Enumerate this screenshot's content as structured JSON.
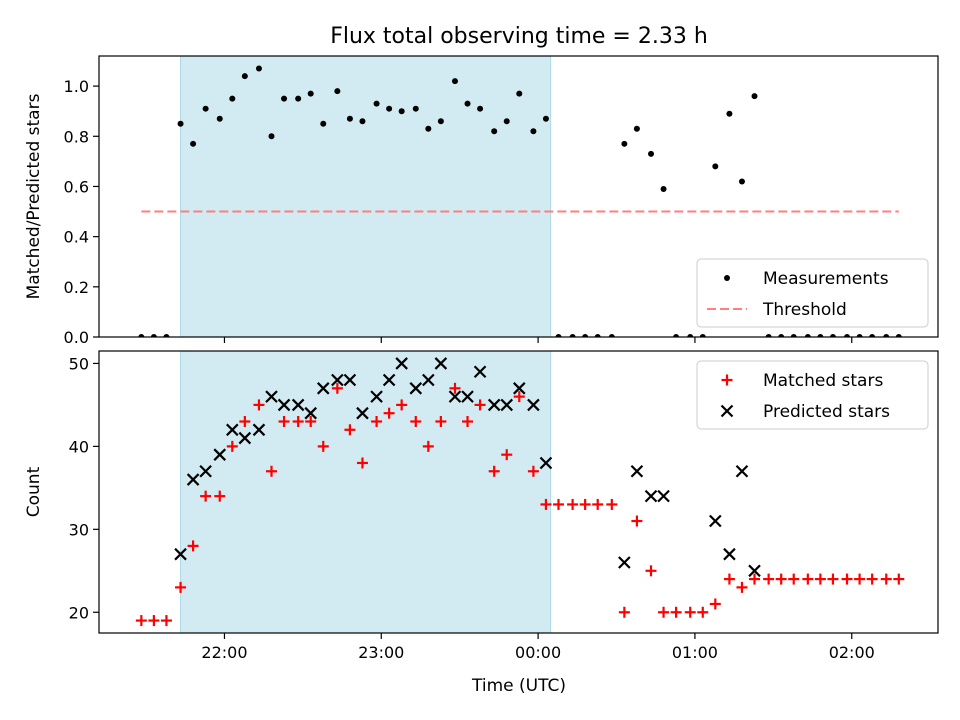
{
  "chart_data": {
    "title": "Flux total observing time = 2.33 h",
    "xlabel": "Time (UTC)",
    "x_unit": "hours UTC on a continuous clock (24.0 = 00:00 next day)",
    "xlim": [
      21.2,
      26.55
    ],
    "x_ticks": [
      {
        "value": 22.0,
        "label": "22:00"
      },
      {
        "value": 23.0,
        "label": "23:00"
      },
      {
        "value": 24.0,
        "label": "00:00"
      },
      {
        "value": 25.0,
        "label": "01:00"
      },
      {
        "value": 26.0,
        "label": "02:00"
      }
    ],
    "shaded_region": {
      "x_start": 21.72,
      "x_end": 24.08,
      "color": "#add8e6"
    },
    "panels": [
      {
        "type": "scatter",
        "ylabel": "Matched/Predicted stars",
        "ylim": [
          0.0,
          1.12
        ],
        "y_ticks": [
          {
            "value": 0.0,
            "label": "0.0"
          },
          {
            "value": 0.2,
            "label": "0.2"
          },
          {
            "value": 0.4,
            "label": "0.4"
          },
          {
            "value": 0.6,
            "label": "0.6"
          },
          {
            "value": 0.8,
            "label": "0.8"
          },
          {
            "value": 1.0,
            "label": "1.0"
          }
        ],
        "legend": {
          "position": "lower-right"
        },
        "series": [
          {
            "name": "Measurements",
            "kind": "dot",
            "color": "#000000",
            "x": [
              21.47,
              21.55,
              21.63,
              21.72,
              21.8,
              21.88,
              21.97,
              22.05,
              22.13,
              22.22,
              22.3,
              22.38,
              22.47,
              22.55,
              22.63,
              22.72,
              22.8,
              22.88,
              22.97,
              23.05,
              23.13,
              23.22,
              23.3,
              23.38,
              23.47,
              23.55,
              23.63,
              23.72,
              23.8,
              23.88,
              23.97,
              24.05,
              24.13,
              24.22,
              24.3,
              24.38,
              24.47,
              24.55,
              24.63,
              24.72,
              24.8,
              24.88,
              24.97,
              25.05,
              25.13,
              25.22,
              25.3,
              25.38,
              25.47,
              25.55,
              25.63,
              25.72,
              25.8,
              25.88,
              25.97,
              26.05,
              26.13,
              26.22,
              26.3
            ],
            "y": [
              0.0,
              0.0,
              0.0,
              0.85,
              0.77,
              0.91,
              0.87,
              0.95,
              1.04,
              1.07,
              0.8,
              0.95,
              0.95,
              0.97,
              0.85,
              0.98,
              0.87,
              0.86,
              0.93,
              0.91,
              0.9,
              0.91,
              0.83,
              0.86,
              1.02,
              0.93,
              0.91,
              0.82,
              0.86,
              0.97,
              0.82,
              0.87,
              0.0,
              0.0,
              0.0,
              0.0,
              0.0,
              0.77,
              0.83,
              0.73,
              0.59,
              0.0,
              0.0,
              0.0,
              0.68,
              0.89,
              0.62,
              0.96,
              0.0,
              0.0,
              0.0,
              0.0,
              0.0,
              0.0,
              0.0,
              0.0,
              0.0,
              0.0,
              0.0
            ]
          },
          {
            "name": "Threshold",
            "kind": "dashed-line",
            "color": "#ff7f7f",
            "x": [
              21.47,
              26.3
            ],
            "y": [
              0.5,
              0.5
            ]
          }
        ]
      },
      {
        "type": "scatter",
        "ylabel": "Count",
        "ylim": [
          17.5,
          51.5
        ],
        "y_ticks": [
          {
            "value": 20,
            "label": "20"
          },
          {
            "value": 30,
            "label": "30"
          },
          {
            "value": 40,
            "label": "40"
          },
          {
            "value": 50,
            "label": "50"
          }
        ],
        "legend": {
          "position": "upper-right"
        },
        "series": [
          {
            "name": "Matched stars",
            "kind": "plus",
            "color": "#ff0000",
            "x": [
              21.47,
              21.55,
              21.63,
              21.72,
              21.8,
              21.88,
              21.97,
              22.05,
              22.13,
              22.22,
              22.3,
              22.38,
              22.47,
              22.55,
              22.63,
              22.72,
              22.8,
              22.88,
              22.97,
              23.05,
              23.13,
              23.22,
              23.3,
              23.38,
              23.47,
              23.55,
              23.63,
              23.72,
              23.8,
              23.88,
              23.97,
              24.05,
              24.13,
              24.22,
              24.3,
              24.38,
              24.47,
              24.55,
              24.63,
              24.72,
              24.8,
              24.88,
              24.97,
              25.05,
              25.13,
              25.22,
              25.3,
              25.38,
              25.47,
              25.55,
              25.63,
              25.72,
              25.8,
              25.88,
              25.97,
              26.05,
              26.13,
              26.22,
              26.3
            ],
            "y": [
              19,
              19,
              19,
              23,
              28,
              34,
              34,
              40,
              43,
              45,
              37,
              43,
              43,
              43,
              40,
              47,
              42,
              38,
              43,
              44,
              45,
              43,
              40,
              43,
              47,
              43,
              45,
              37,
              39,
              46,
              37,
              33,
              33,
              33,
              33,
              33,
              33,
              20,
              31,
              25,
              20,
              20,
              20,
              20,
              21,
              24,
              23,
              24,
              24,
              24,
              24,
              24,
              24,
              24,
              24,
              24,
              24,
              24,
              24
            ]
          },
          {
            "name": "Predicted stars",
            "kind": "cross",
            "color": "#000000",
            "x": [
              21.72,
              21.8,
              21.88,
              21.97,
              22.05,
              22.13,
              22.22,
              22.3,
              22.38,
              22.47,
              22.55,
              22.63,
              22.72,
              22.8,
              22.88,
              22.97,
              23.05,
              23.13,
              23.22,
              23.3,
              23.38,
              23.47,
              23.55,
              23.63,
              23.72,
              23.8,
              23.88,
              23.97,
              24.05,
              24.55,
              24.63,
              24.72,
              24.8,
              25.13,
              25.22,
              25.3,
              25.38
            ],
            "y": [
              27,
              36,
              37,
              39,
              42,
              41,
              42,
              46,
              45,
              45,
              44,
              47,
              48,
              48,
              44,
              46,
              48,
              50,
              47,
              48,
              50,
              46,
              46,
              49,
              45,
              45,
              47,
              45,
              38,
              26,
              37,
              34,
              34,
              31,
              27,
              37,
              25
            ]
          }
        ]
      }
    ]
  }
}
